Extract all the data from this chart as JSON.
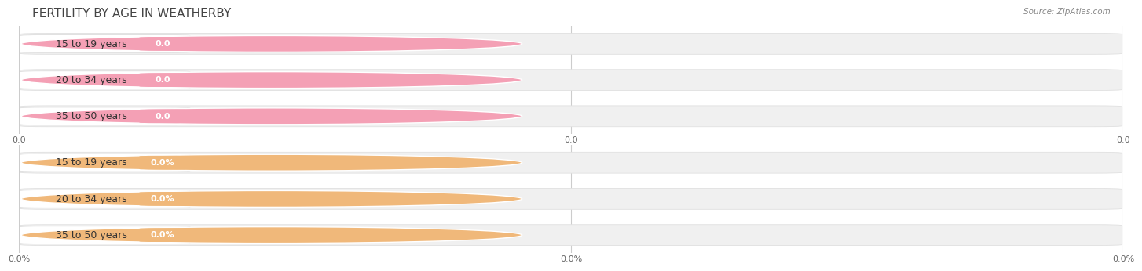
{
  "title": "FERTILITY BY AGE IN WEATHERBY",
  "source": "Source: ZipAtlas.com",
  "top_section": {
    "categories": [
      "15 to 19 years",
      "20 to 34 years",
      "35 to 50 years"
    ],
    "values": [
      0.0,
      0.0,
      0.0
    ],
    "bar_color": "#f4a0b5",
    "bar_bg_color": "#f5f5f5",
    "bar_border_color": "#dddddd",
    "value_labels": [
      "0.0",
      "0.0",
      "0.0"
    ],
    "xtick_labels": [
      "0.0",
      "0.0",
      "0.0"
    ]
  },
  "bottom_section": {
    "categories": [
      "15 to 19 years",
      "20 to 34 years",
      "35 to 50 years"
    ],
    "values": [
      0.0,
      0.0,
      0.0
    ],
    "bar_color": "#f0b87a",
    "bar_bg_color": "#f5f5f5",
    "bar_border_color": "#dddddd",
    "value_labels": [
      "0.0%",
      "0.0%",
      "0.0%"
    ],
    "xtick_labels": [
      "0.0%",
      "0.0%",
      "0.0%"
    ]
  },
  "bg_color": "#ffffff",
  "full_bar_bg": "#f0f0f0",
  "full_bar_border": "#e0e0e0",
  "title_fontsize": 11,
  "source_fontsize": 7.5,
  "label_fontsize": 9,
  "value_fontsize": 8
}
